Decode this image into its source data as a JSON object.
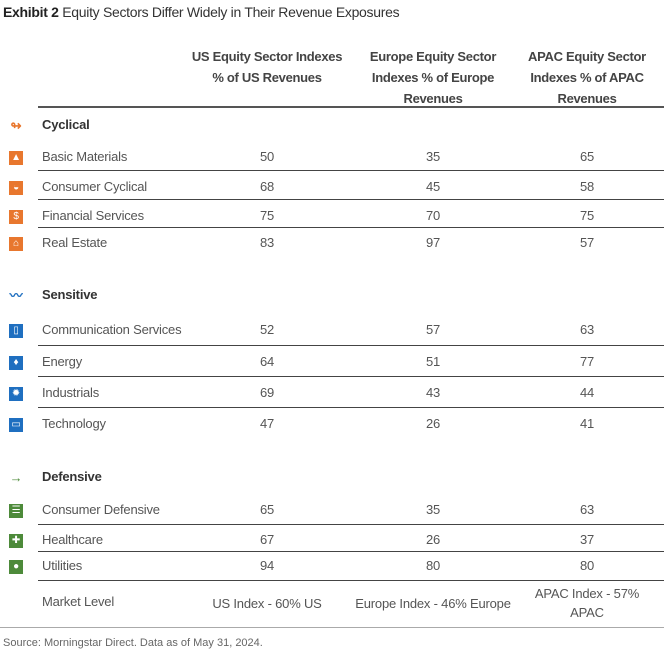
{
  "title": {
    "exhibit": "Exhibit 2",
    "text": "Equity Sectors Differ Widely in Their Revenue Exposures"
  },
  "headers": [
    "US Equity Sector Indexes % of US Revenues",
    "Europe Equity Sector Indexes % of Europe Revenues",
    "APAC Equity Sector Indexes % of APAC Revenues"
  ],
  "colors": {
    "cyclical": "#e8772e",
    "sensitive": "#1f6fc0",
    "defensive": "#4d8a3a"
  },
  "groups": [
    {
      "name": "Cyclical",
      "icon": "cyclical-icon",
      "glyph": "↬",
      "color": "#e8772e",
      "rows": [
        {
          "label": "Basic Materials",
          "icon": "basic-materials-icon",
          "glyph": "▲",
          "values": [
            "50",
            "35",
            "65"
          ]
        },
        {
          "label": "Consumer Cyclical",
          "icon": "car-icon",
          "glyph": "◒",
          "values": [
            "68",
            "45",
            "58"
          ]
        },
        {
          "label": "Financial Services",
          "icon": "financial-services-icon",
          "glyph": "$",
          "values": [
            "75",
            "70",
            "75"
          ]
        },
        {
          "label": "Real Estate",
          "icon": "house-icon",
          "glyph": "⌂",
          "values": [
            "83",
            "97",
            "57"
          ]
        }
      ]
    },
    {
      "name": "Sensitive",
      "icon": "sensitive-icon",
      "glyph": "〰",
      "color": "#1f6fc0",
      "rows": [
        {
          "label": "Communication Services",
          "icon": "phone-icon",
          "glyph": "▯",
          "values": [
            "52",
            "57",
            "63"
          ]
        },
        {
          "label": "Energy",
          "icon": "flame-icon",
          "glyph": "♦",
          "values": [
            "64",
            "51",
            "77"
          ]
        },
        {
          "label": "Industrials",
          "icon": "gear-icon",
          "glyph": "✹",
          "values": [
            "69",
            "43",
            "44"
          ]
        },
        {
          "label": "Technology",
          "icon": "computer-icon",
          "glyph": "▭",
          "values": [
            "47",
            "26",
            "41"
          ]
        }
      ]
    },
    {
      "name": "Defensive",
      "icon": "defensive-arrow-icon",
      "glyph": "→",
      "color": "#4d8a3a",
      "rows": [
        {
          "label": "Consumer Defensive",
          "icon": "cart-icon",
          "glyph": "☰",
          "values": [
            "65",
            "35",
            "63"
          ]
        },
        {
          "label": "Healthcare",
          "icon": "cross-icon",
          "glyph": "✚",
          "values": [
            "67",
            "26",
            "37"
          ]
        },
        {
          "label": "Utilities",
          "icon": "lightbulb-icon",
          "glyph": "●",
          "values": [
            "94",
            "80",
            "80"
          ]
        }
      ]
    }
  ],
  "market": {
    "label": "Market Level",
    "values": [
      "US Index  - 60% US",
      "Europe Index - 46% Europe",
      "APAC Index - 57% APAC"
    ]
  },
  "source": "Source: Morningstar Direct. Data as of May 31, 2024."
}
